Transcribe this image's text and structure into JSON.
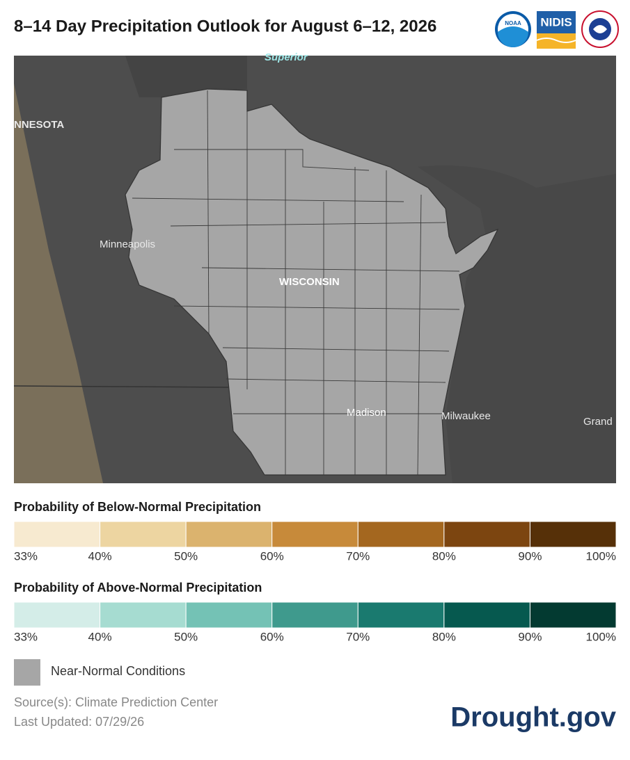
{
  "header": {
    "title": "8–14 Day Precipitation Outlook for August 6–12, 2026",
    "logos": [
      "NOAA",
      "NIDIS"
    ]
  },
  "map": {
    "labels": [
      "Superior",
      "NNESOTA",
      "Minneapolis",
      "WISCONSIN",
      "Madison",
      "Milwaukee",
      "Grand"
    ]
  },
  "legends": [
    {
      "title": "Probability of Below-Normal Precipitation",
      "ticks": [
        "33%",
        "40%",
        "50%",
        "60%",
        "70%",
        "80%",
        "90%",
        "100%"
      ],
      "colors": [
        "#f7ead0",
        "#edd5a1",
        "#dbb36e",
        "#c78a3a",
        "#a4671f",
        "#7c4510",
        "#563008"
      ]
    },
    {
      "title": "Probability of Above-Normal Precipitation",
      "ticks": [
        "33%",
        "40%",
        "50%",
        "60%",
        "70%",
        "80%",
        "90%",
        "100%"
      ],
      "colors": [
        "#d4ede8",
        "#a6dcd1",
        "#74c2b5",
        "#3f9a8d",
        "#1a7a6f",
        "#06594f",
        "#033a31"
      ]
    }
  ],
  "near_normal": "Near-Normal Conditions",
  "footer": {
    "source": "Source(s): Climate Prediction Center",
    "updated": "Last Updated: 07/29/26",
    "brand": "Drought.gov"
  }
}
